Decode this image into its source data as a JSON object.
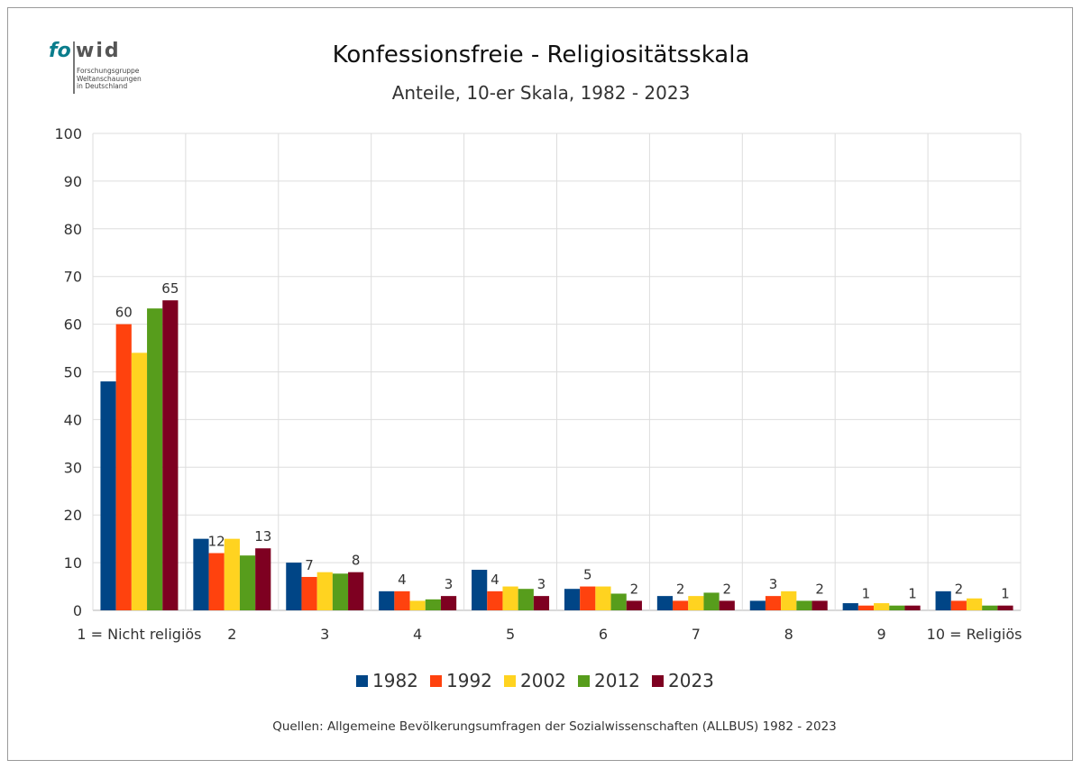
{
  "logo": {
    "text_fo": "fo",
    "text_wid": "wid",
    "tagline": "Forschungsgruppe\nWeltanschauungen\nin Deutschland"
  },
  "source": "Quellen: Allgemeine Bevölkerungsumfragen der Sozialwissenschaften (ALLBUS) 1982 - 2023",
  "chart_data": {
    "type": "bar",
    "title": "Konfessionsfreie - Religiositätsskala",
    "subtitle": "Anteile, 10-er Skala, 1982 - 2023",
    "categories": [
      "1 = Nicht religiös",
      "2",
      "3",
      "4",
      "5",
      "6",
      "7",
      "8",
      "9",
      "10 = Religiös"
    ],
    "ylim": [
      0,
      100
    ],
    "yticks": [
      0,
      10,
      20,
      30,
      40,
      50,
      60,
      70,
      80,
      90,
      100
    ],
    "grid": true,
    "legend_position": "bottom",
    "series": [
      {
        "name": "1982",
        "color": "#004586",
        "values": [
          48,
          15,
          10,
          4,
          8.5,
          4.5,
          3,
          2,
          1.5,
          4
        ]
      },
      {
        "name": "1992",
        "color": "#ff420e",
        "values": [
          60,
          12,
          7,
          4,
          4,
          5,
          2,
          3,
          1,
          2
        ]
      },
      {
        "name": "2002",
        "color": "#ffd320",
        "values": [
          54,
          15,
          8,
          2,
          5,
          5,
          3,
          4,
          1.5,
          2.5
        ]
      },
      {
        "name": "2012",
        "color": "#579d1c",
        "values": [
          63.3,
          11.5,
          7.7,
          2.3,
          4.5,
          3.5,
          3.7,
          2,
          1,
          1
        ]
      },
      {
        "name": "2023",
        "color": "#7e0021",
        "values": [
          65,
          13,
          8,
          3,
          3,
          2,
          2,
          2,
          1,
          1
        ]
      }
    ],
    "data_labels": [
      {
        "category": 0,
        "series": 1,
        "text": "60"
      },
      {
        "category": 0,
        "series": 4,
        "text": "65"
      },
      {
        "category": 1,
        "series": 1,
        "text": "12"
      },
      {
        "category": 1,
        "series": 4,
        "text": "13"
      },
      {
        "category": 2,
        "series": 1,
        "text": "7"
      },
      {
        "category": 2,
        "series": 4,
        "text": "8"
      },
      {
        "category": 3,
        "series": 1,
        "text": "4"
      },
      {
        "category": 3,
        "series": 4,
        "text": "3"
      },
      {
        "category": 4,
        "series": 1,
        "text": "4"
      },
      {
        "category": 4,
        "series": 4,
        "text": "3"
      },
      {
        "category": 5,
        "series": 1,
        "text": "5"
      },
      {
        "category": 5,
        "series": 4,
        "text": "2"
      },
      {
        "category": 6,
        "series": 1,
        "text": "2"
      },
      {
        "category": 6,
        "series": 4,
        "text": "2"
      },
      {
        "category": 7,
        "series": 1,
        "text": "3"
      },
      {
        "category": 7,
        "series": 4,
        "text": "2"
      },
      {
        "category": 8,
        "series": 1,
        "text": "1"
      },
      {
        "category": 8,
        "series": 4,
        "text": "1"
      },
      {
        "category": 9,
        "series": 1,
        "text": "2"
      },
      {
        "category": 9,
        "series": 4,
        "text": "1"
      }
    ]
  }
}
